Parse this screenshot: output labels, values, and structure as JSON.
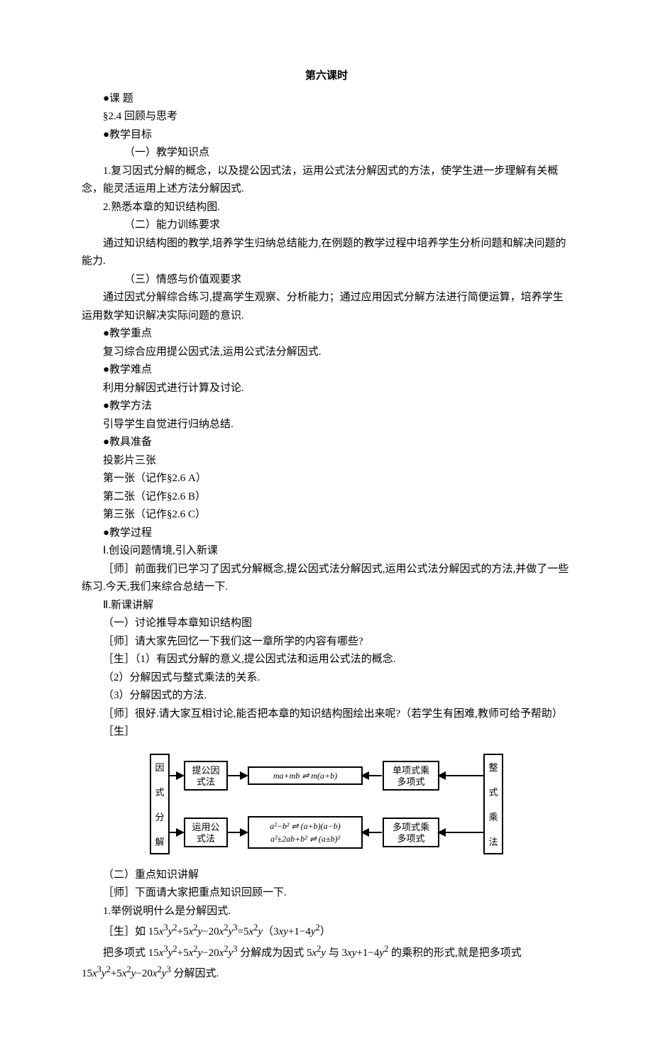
{
  "title": "第六课时",
  "lines": [
    {
      "cls": "ind1",
      "t": "●课 题"
    },
    {
      "cls": "ind1",
      "t": "§2.4  回顾与思考"
    },
    {
      "cls": "ind1",
      "t": "●教学目标"
    },
    {
      "cls": "ind2",
      "t": "（一）教学知识点"
    },
    {
      "cls": "ind1",
      "t": "1.复习因式分解的概念，以及提公因式法，运用公式法分解因式的方法，使学生进一步理解有关概念，能灵活运用上述方法分解因式."
    },
    {
      "cls": "ind1",
      "t": "2.熟悉本章的知识结构图."
    },
    {
      "cls": "ind2",
      "t": "（二）能力训练要求"
    },
    {
      "cls": "ind1",
      "t": "通过知识结构图的教学,培养学生归纳总结能力,在例题的教学过程中培养学生分析问题和解决问题的能力."
    },
    {
      "cls": "ind2",
      "t": "（三）情感与价值观要求"
    },
    {
      "cls": "ind1",
      "t": "通过因式分解综合练习,提高学生观察、分析能力；通过应用因式分解方法进行简便运算，培养学生运用数学知识解决实际问题的意识."
    },
    {
      "cls": "ind1",
      "t": "●教学重点"
    },
    {
      "cls": "ind1",
      "t": "复习综合应用提公因式法,运用公式法分解因式."
    },
    {
      "cls": "ind1",
      "t": "●教学难点"
    },
    {
      "cls": "ind1",
      "t": "利用分解因式进行计算及讨论."
    },
    {
      "cls": "ind1",
      "t": "●教学方法"
    },
    {
      "cls": "ind1",
      "t": "引导学生自觉进行归纳总结."
    },
    {
      "cls": "ind1",
      "t": "●教具准备"
    },
    {
      "cls": "ind1",
      "t": "投影片三张"
    },
    {
      "cls": "ind1",
      "t": "第一张（记作§2.6 A）"
    },
    {
      "cls": "ind1",
      "t": "第二张（记作§2.6 B）"
    },
    {
      "cls": "ind1",
      "t": "第三张（记作§2.6 C）"
    },
    {
      "cls": "ind1",
      "t": "●教学过程"
    },
    {
      "cls": "ind1",
      "t": "Ⅰ.创设问题情境,引入新课"
    },
    {
      "cls": "ind1",
      "t": "［师］前面我们已学习了因式分解概念,提公因式法分解因式,运用公式法分解因式的方法,并做了一些练习.今天,我们来综合总结一下."
    },
    {
      "cls": "ind1",
      "t": "Ⅱ.新课讲解"
    },
    {
      "cls": "ind1",
      "t": "（一）讨论推导本章知识结构图"
    },
    {
      "cls": "ind1",
      "t": "［师］请大家先回忆一下我们这一章所学的内容有哪些?"
    },
    {
      "cls": "ind1",
      "t": "［生］（1）有因式分解的意义,提公因式法和运用公式法的概念."
    },
    {
      "cls": "ind1",
      "t": "（2）分解因式与整式乘法的关系."
    },
    {
      "cls": "ind1",
      "t": "（3）分解因式的方法."
    },
    {
      "cls": "ind1",
      "t": "［师］很好.请大家互相讨论,能否把本章的知识结构图绘出来呢?（若学生有困难,教师可给予帮助）"
    },
    {
      "cls": "ind1",
      "t": "［生］"
    }
  ],
  "diagram": {
    "left_label": "因 式 分 解",
    "right_label": "整 式 乘 法",
    "row1": {
      "box1": "提公因\n式法",
      "box2": "ma+mb ⇌ m(a+b)",
      "box3": "单项式乘\n多项式"
    },
    "row2": {
      "box1": "运用公\n式法",
      "box2a": "a²−b² ⇌ (a+b)(a−b)",
      "box2b": "a²±2ab+b² ⇌ (a±b)²",
      "box3": "多项式乘\n多项式"
    },
    "colors": {
      "stroke": "#000000",
      "fill": "#ffffff"
    },
    "stroke_width": 2,
    "font_size": 13
  },
  "lines2": [
    {
      "cls": "ind1",
      "t": "（二）重点知识讲解"
    },
    {
      "cls": "ind1",
      "t": "［师］下面请大家把重点知识回顾一下."
    },
    {
      "cls": "ind1",
      "t": "1.举例说明什么是分解因式."
    },
    {
      "cls": "ind1",
      "html": "［生］如 15<i>x</i><sup>3</sup><i>y</i><sup>2</sup>+5<i>x</i><sup>2</sup><i>y</i>−20<i>x</i><sup>2</sup><i>y</i><sup>3</sup>=5<i>x</i><sup>2</sup><i>y</i>（3<i>xy</i>+1−4<i>y</i><sup>2</sup>）"
    },
    {
      "cls": "ind1",
      "html": "把多项式 15<i>x</i><sup>3</sup><i>y</i><sup>2</sup>+5<i>x</i><sup>2</sup><i>y</i>−20<i>x</i><sup>2</sup><i>y</i><sup>3</sup> 分解成为因式 5<i>x</i><sup>2</sup><i>y</i> 与 3<i>xy</i>+1−4<i>y</i><sup>2</sup> 的乘积的形式,就是把多项式 15<i>x</i><sup>3</sup><i>y</i><sup>2</sup>+5<i>x</i><sup>2</sup><i>y</i>−20<i>x</i><sup>2</sup><i>y</i><sup>3</sup> 分解因式."
    }
  ]
}
